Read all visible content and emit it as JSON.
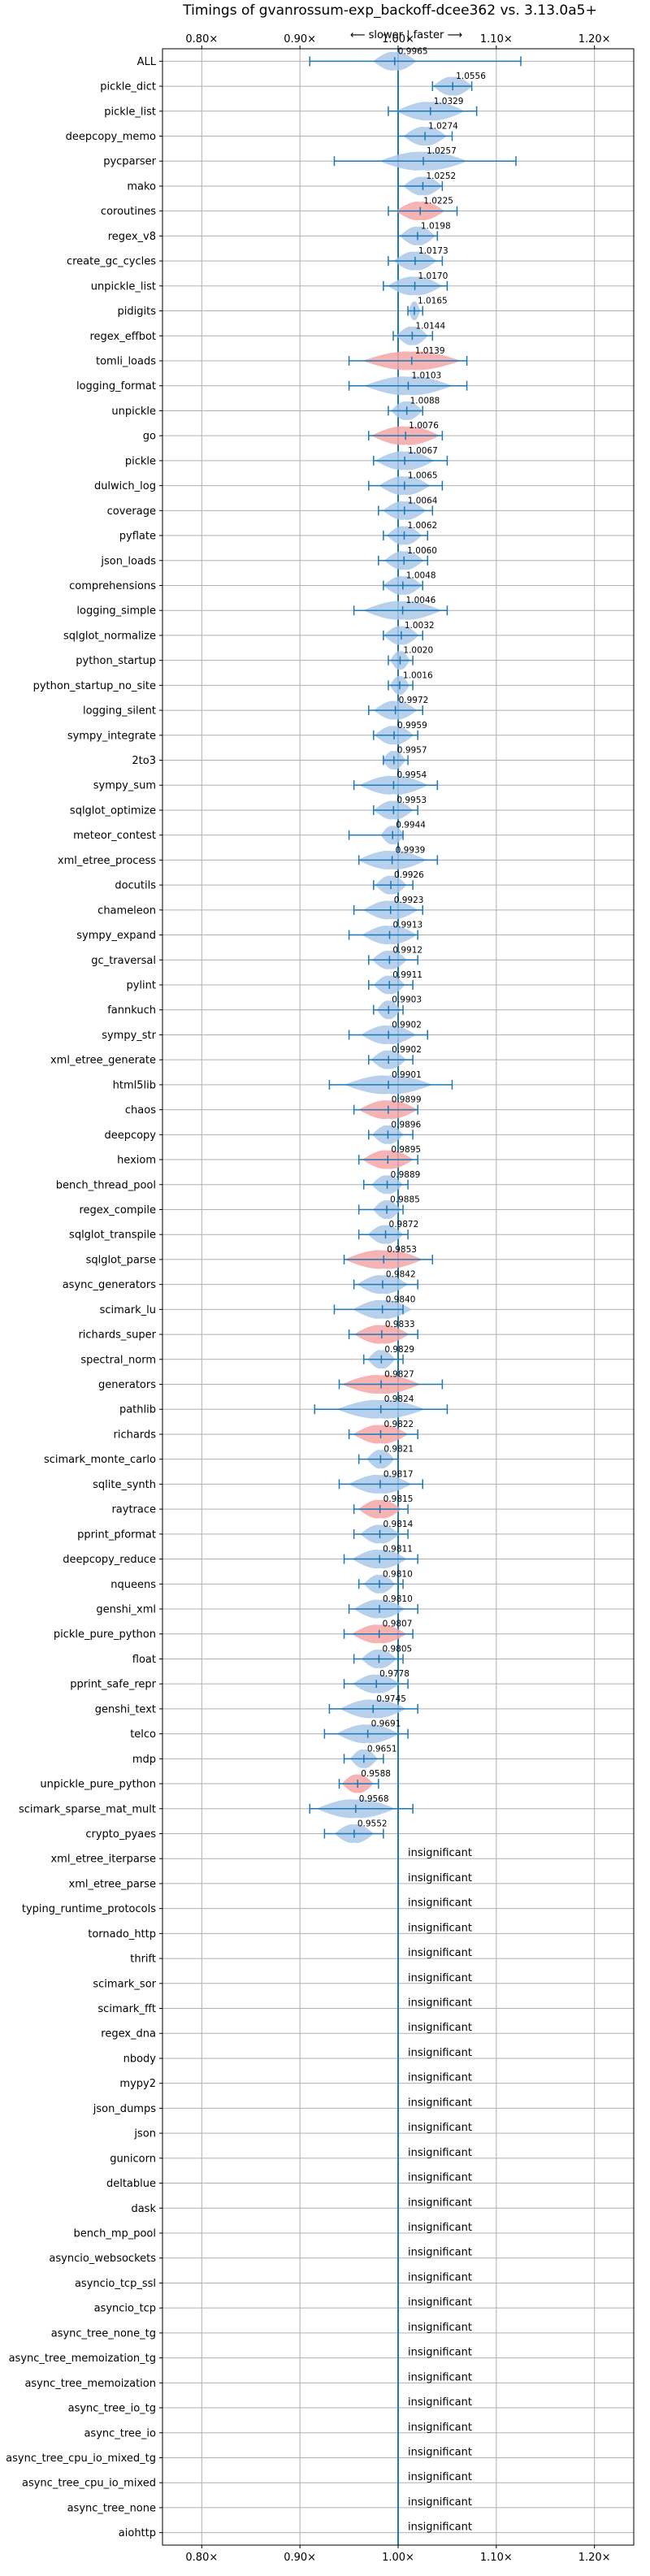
{
  "chart_data": {
    "type": "violin",
    "title": "Timings of gvanrossum-exp_backoff-dcee362 vs. 3.13.0a5+",
    "direction_note": "⟵ slower  |  faster ⟶",
    "xlim": [
      0.76,
      1.24
    ],
    "x_ticks": [
      0.8,
      0.9,
      1.0,
      1.1,
      1.2
    ],
    "x_tick_labels": [
      "0.80×",
      "0.90×",
      "1.00×",
      "1.10×",
      "1.20×"
    ],
    "reference_line": 1.0,
    "grid": true,
    "colors": {
      "faster": "#aac8e8",
      "slower": "#f4a6a6",
      "whisker": "#1f77b4",
      "reference": "#1f77b4"
    },
    "insignificant_label": "insignificant",
    "benchmarks": [
      {
        "name": "ALL",
        "value": 0.9965,
        "label": "0.9965",
        "min": 0.91,
        "max": 1.125,
        "color": "faster",
        "width": 0.022
      },
      {
        "name": "pickle_dict",
        "value": 1.0556,
        "label": "1.0556",
        "min": 1.035,
        "max": 1.075,
        "color": "faster",
        "width": 0.02
      },
      {
        "name": "pickle_list",
        "value": 1.0329,
        "label": "1.0329",
        "min": 0.99,
        "max": 1.08,
        "color": "faster",
        "width": 0.035
      },
      {
        "name": "deepcopy_memo",
        "value": 1.0274,
        "label": "1.0274",
        "min": 1.0,
        "max": 1.055,
        "color": "faster",
        "width": 0.022
      },
      {
        "name": "pycparser",
        "value": 1.0257,
        "label": "1.0257",
        "min": 0.935,
        "max": 1.12,
        "color": "faster",
        "width": 0.045
      },
      {
        "name": "mako",
        "value": 1.0252,
        "label": "1.0252",
        "min": 1.0,
        "max": 1.045,
        "color": "faster",
        "width": 0.02
      },
      {
        "name": "coroutines",
        "value": 1.0225,
        "label": "1.0225",
        "min": 0.99,
        "max": 1.06,
        "color": "slower",
        "width": 0.025
      },
      {
        "name": "regex_v8",
        "value": 1.0198,
        "label": "1.0198",
        "min": 1.0,
        "max": 1.04,
        "color": "faster",
        "width": 0.018
      },
      {
        "name": "create_gc_cycles",
        "value": 1.0173,
        "label": "1.0173",
        "min": 0.99,
        "max": 1.045,
        "color": "faster",
        "width": 0.022
      },
      {
        "name": "unpickle_list",
        "value": 1.017,
        "label": "1.0170",
        "min": 0.985,
        "max": 1.05,
        "color": "faster",
        "width": 0.028
      },
      {
        "name": "pidigits",
        "value": 1.0165,
        "label": "1.0165",
        "min": 1.01,
        "max": 1.025,
        "color": "faster",
        "width": 0.006
      },
      {
        "name": "regex_effbot",
        "value": 1.0144,
        "label": "1.0144",
        "min": 0.995,
        "max": 1.035,
        "color": "faster",
        "width": 0.016
      },
      {
        "name": "tomli_loads",
        "value": 1.0139,
        "label": "1.0139",
        "min": 0.95,
        "max": 1.07,
        "color": "slower",
        "width": 0.05
      },
      {
        "name": "logging_format",
        "value": 1.0103,
        "label": "1.0103",
        "min": 0.95,
        "max": 1.07,
        "color": "faster",
        "width": 0.045
      },
      {
        "name": "unpickle",
        "value": 1.0088,
        "label": "1.0088",
        "min": 0.99,
        "max": 1.025,
        "color": "faster",
        "width": 0.016
      },
      {
        "name": "go",
        "value": 1.0076,
        "label": "1.0076",
        "min": 0.97,
        "max": 1.045,
        "color": "slower",
        "width": 0.035
      },
      {
        "name": "pickle",
        "value": 1.0067,
        "label": "1.0067",
        "min": 0.975,
        "max": 1.05,
        "color": "faster",
        "width": 0.03
      },
      {
        "name": "dulwich_log",
        "value": 1.0065,
        "label": "1.0065",
        "min": 0.97,
        "max": 1.045,
        "color": "faster",
        "width": 0.026
      },
      {
        "name": "coverage",
        "value": 1.0064,
        "label": "1.0064",
        "min": 0.98,
        "max": 1.035,
        "color": "faster",
        "width": 0.022
      },
      {
        "name": "pyflate",
        "value": 1.0062,
        "label": "1.0062",
        "min": 0.985,
        "max": 1.03,
        "color": "faster",
        "width": 0.018
      },
      {
        "name": "json_loads",
        "value": 1.006,
        "label": "1.0060",
        "min": 0.98,
        "max": 1.03,
        "color": "faster",
        "width": 0.02
      },
      {
        "name": "comprehensions",
        "value": 1.0048,
        "label": "1.0048",
        "min": 0.985,
        "max": 1.025,
        "color": "faster",
        "width": 0.02
      },
      {
        "name": "logging_simple",
        "value": 1.0046,
        "label": "1.0046",
        "min": 0.955,
        "max": 1.05,
        "color": "faster",
        "width": 0.04
      },
      {
        "name": "sqlglot_normalize",
        "value": 1.0032,
        "label": "1.0032",
        "min": 0.985,
        "max": 1.025,
        "color": "faster",
        "width": 0.018
      },
      {
        "name": "python_startup",
        "value": 1.002,
        "label": "1.0020",
        "min": 0.99,
        "max": 1.015,
        "color": "faster",
        "width": 0.01
      },
      {
        "name": "python_startup_no_site",
        "value": 1.0016,
        "label": "1.0016",
        "min": 0.99,
        "max": 1.015,
        "color": "faster",
        "width": 0.01
      },
      {
        "name": "logging_silent",
        "value": 0.9972,
        "label": "0.9972",
        "min": 0.97,
        "max": 1.025,
        "color": "faster",
        "width": 0.022
      },
      {
        "name": "sympy_integrate",
        "value": 0.9959,
        "label": "0.9959",
        "min": 0.975,
        "max": 1.02,
        "color": "faster",
        "width": 0.02
      },
      {
        "name": "2to3",
        "value": 0.9957,
        "label": "0.9957",
        "min": 0.985,
        "max": 1.01,
        "color": "faster",
        "width": 0.012
      },
      {
        "name": "sympy_sum",
        "value": 0.9954,
        "label": "0.9954",
        "min": 0.955,
        "max": 1.04,
        "color": "faster",
        "width": 0.035
      },
      {
        "name": "sqlglot_optimize",
        "value": 0.9953,
        "label": "0.9953",
        "min": 0.975,
        "max": 1.02,
        "color": "faster",
        "width": 0.02
      },
      {
        "name": "meteor_contest",
        "value": 0.9944,
        "label": "0.9944",
        "min": 0.95,
        "max": 1.005,
        "color": "faster",
        "width": 0.012
      },
      {
        "name": "xml_etree_process",
        "value": 0.9939,
        "label": "0.9939",
        "min": 0.96,
        "max": 1.04,
        "color": "faster",
        "width": 0.035
      },
      {
        "name": "docutils",
        "value": 0.9926,
        "label": "0.9926",
        "min": 0.975,
        "max": 1.015,
        "color": "faster",
        "width": 0.016
      },
      {
        "name": "chameleon",
        "value": 0.9923,
        "label": "0.9923",
        "min": 0.955,
        "max": 1.025,
        "color": "faster",
        "width": 0.028
      },
      {
        "name": "sympy_expand",
        "value": 0.9913,
        "label": "0.9913",
        "min": 0.95,
        "max": 1.02,
        "color": "faster",
        "width": 0.028
      },
      {
        "name": "gc_traversal",
        "value": 0.9912,
        "label": "0.9912",
        "min": 0.97,
        "max": 1.02,
        "color": "faster",
        "width": 0.018
      },
      {
        "name": "pylint",
        "value": 0.9911,
        "label": "0.9911",
        "min": 0.97,
        "max": 1.015,
        "color": "faster",
        "width": 0.016
      },
      {
        "name": "fannkuch",
        "value": 0.9903,
        "label": "0.9903",
        "min": 0.975,
        "max": 1.005,
        "color": "faster",
        "width": 0.012
      },
      {
        "name": "sympy_str",
        "value": 0.9902,
        "label": "0.9902",
        "min": 0.95,
        "max": 1.03,
        "color": "faster",
        "width": 0.028
      },
      {
        "name": "xml_etree_generate",
        "value": 0.9902,
        "label": "0.9902",
        "min": 0.97,
        "max": 1.015,
        "color": "faster",
        "width": 0.018
      },
      {
        "name": "html5lib",
        "value": 0.9901,
        "label": "0.9901",
        "min": 0.93,
        "max": 1.055,
        "color": "faster",
        "width": 0.045
      },
      {
        "name": "chaos",
        "value": 0.9899,
        "label": "0.9899",
        "min": 0.955,
        "max": 1.02,
        "color": "slower",
        "width": 0.03
      },
      {
        "name": "deepcopy",
        "value": 0.9896,
        "label": "0.9896",
        "min": 0.97,
        "max": 1.015,
        "color": "faster",
        "width": 0.016
      },
      {
        "name": "hexiom",
        "value": 0.9895,
        "label": "0.9895",
        "min": 0.96,
        "max": 1.02,
        "color": "slower",
        "width": 0.026
      },
      {
        "name": "bench_thread_pool",
        "value": 0.9889,
        "label": "0.9889",
        "min": 0.965,
        "max": 1.01,
        "color": "faster",
        "width": 0.016
      },
      {
        "name": "regex_compile",
        "value": 0.9885,
        "label": "0.9885",
        "min": 0.96,
        "max": 1.005,
        "color": "faster",
        "width": 0.014
      },
      {
        "name": "sqlglot_transpile",
        "value": 0.9872,
        "label": "0.9872",
        "min": 0.96,
        "max": 1.01,
        "color": "faster",
        "width": 0.018
      },
      {
        "name": "sqlglot_parse",
        "value": 0.9853,
        "label": "0.9853",
        "min": 0.945,
        "max": 1.035,
        "color": "slower",
        "width": 0.04
      },
      {
        "name": "async_generators",
        "value": 0.9842,
        "label": "0.9842",
        "min": 0.955,
        "max": 1.02,
        "color": "faster",
        "width": 0.026
      },
      {
        "name": "scimark_lu",
        "value": 0.984,
        "label": "0.9840",
        "min": 0.935,
        "max": 1.005,
        "color": "faster",
        "width": 0.03
      },
      {
        "name": "richards_super",
        "value": 0.9833,
        "label": "0.9833",
        "min": 0.95,
        "max": 1.02,
        "color": "slower",
        "width": 0.028
      },
      {
        "name": "spectral_norm",
        "value": 0.9829,
        "label": "0.9829",
        "min": 0.965,
        "max": 1.005,
        "color": "faster",
        "width": 0.014
      },
      {
        "name": "generators",
        "value": 0.9827,
        "label": "0.9827",
        "min": 0.94,
        "max": 1.045,
        "color": "slower",
        "width": 0.04
      },
      {
        "name": "pathlib",
        "value": 0.9824,
        "label": "0.9824",
        "min": 0.915,
        "max": 1.05,
        "color": "faster",
        "width": 0.045
      },
      {
        "name": "richards",
        "value": 0.9822,
        "label": "0.9822",
        "min": 0.95,
        "max": 1.02,
        "color": "slower",
        "width": 0.028
      },
      {
        "name": "scimark_monte_carlo",
        "value": 0.9821,
        "label": "0.9821",
        "min": 0.96,
        "max": 1.0,
        "color": "faster",
        "width": 0.014
      },
      {
        "name": "sqlite_synth",
        "value": 0.9817,
        "label": "0.9817",
        "min": 0.94,
        "max": 1.025,
        "color": "faster",
        "width": 0.032
      },
      {
        "name": "raytrace",
        "value": 0.9815,
        "label": "0.9815",
        "min": 0.955,
        "max": 1.01,
        "color": "slower",
        "width": 0.022
      },
      {
        "name": "pprint_pformat",
        "value": 0.9814,
        "label": "0.9814",
        "min": 0.955,
        "max": 1.01,
        "color": "faster",
        "width": 0.02
      },
      {
        "name": "deepcopy_reduce",
        "value": 0.9811,
        "label": "0.9811",
        "min": 0.945,
        "max": 1.02,
        "color": "faster",
        "width": 0.028
      },
      {
        "name": "nqueens",
        "value": 0.981,
        "label": "0.9810",
        "min": 0.96,
        "max": 1.005,
        "color": "faster",
        "width": 0.016
      },
      {
        "name": "genshi_xml",
        "value": 0.981,
        "label": "0.9810",
        "min": 0.95,
        "max": 1.02,
        "color": "faster",
        "width": 0.026
      },
      {
        "name": "pickle_pure_python",
        "value": 0.9807,
        "label": "0.9807",
        "min": 0.945,
        "max": 1.015,
        "color": "slower",
        "width": 0.028
      },
      {
        "name": "float",
        "value": 0.9805,
        "label": "0.9805",
        "min": 0.955,
        "max": 1.005,
        "color": "faster",
        "width": 0.018
      },
      {
        "name": "pprint_safe_repr",
        "value": 0.9778,
        "label": "0.9778",
        "min": 0.945,
        "max": 1.01,
        "color": "faster",
        "width": 0.024
      },
      {
        "name": "genshi_text",
        "value": 0.9745,
        "label": "0.9745",
        "min": 0.93,
        "max": 1.02,
        "color": "faster",
        "width": 0.034
      },
      {
        "name": "telco",
        "value": 0.9691,
        "label": "0.9691",
        "min": 0.925,
        "max": 1.01,
        "color": "faster",
        "width": 0.032
      },
      {
        "name": "mdp",
        "value": 0.9651,
        "label": "0.9651",
        "min": 0.945,
        "max": 0.985,
        "color": "faster",
        "width": 0.014
      },
      {
        "name": "unpickle_pure_python",
        "value": 0.9588,
        "label": "0.9588",
        "min": 0.94,
        "max": 0.98,
        "color": "slower",
        "width": 0.016
      },
      {
        "name": "scimark_sparse_mat_mult",
        "value": 0.9568,
        "label": "0.9568",
        "min": 0.91,
        "max": 1.015,
        "color": "faster",
        "width": 0.04
      },
      {
        "name": "crypto_pyaes",
        "value": 0.9552,
        "label": "0.9552",
        "min": 0.925,
        "max": 0.985,
        "color": "faster",
        "width": 0.02
      },
      {
        "name": "xml_etree_iterparse",
        "insignificant": true
      },
      {
        "name": "xml_etree_parse",
        "insignificant": true
      },
      {
        "name": "typing_runtime_protocols",
        "insignificant": true
      },
      {
        "name": "tornado_http",
        "insignificant": true
      },
      {
        "name": "thrift",
        "insignificant": true
      },
      {
        "name": "scimark_sor",
        "insignificant": true
      },
      {
        "name": "scimark_fft",
        "insignificant": true
      },
      {
        "name": "regex_dna",
        "insignificant": true
      },
      {
        "name": "nbody",
        "insignificant": true
      },
      {
        "name": "mypy2",
        "insignificant": true
      },
      {
        "name": "json_dumps",
        "insignificant": true
      },
      {
        "name": "json",
        "insignificant": true
      },
      {
        "name": "gunicorn",
        "insignificant": true
      },
      {
        "name": "deltablue",
        "insignificant": true
      },
      {
        "name": "dask",
        "insignificant": true
      },
      {
        "name": "bench_mp_pool",
        "insignificant": true
      },
      {
        "name": "asyncio_websockets",
        "insignificant": true
      },
      {
        "name": "asyncio_tcp_ssl",
        "insignificant": true
      },
      {
        "name": "asyncio_tcp",
        "insignificant": true
      },
      {
        "name": "async_tree_none_tg",
        "insignificant": true
      },
      {
        "name": "async_tree_memoization_tg",
        "insignificant": true
      },
      {
        "name": "async_tree_memoization",
        "insignificant": true
      },
      {
        "name": "async_tree_io_tg",
        "insignificant": true
      },
      {
        "name": "async_tree_io",
        "insignificant": true
      },
      {
        "name": "async_tree_cpu_io_mixed_tg",
        "insignificant": true
      },
      {
        "name": "async_tree_cpu_io_mixed",
        "insignificant": true
      },
      {
        "name": "async_tree_none",
        "insignificant": true
      },
      {
        "name": "aiohttp",
        "insignificant": true
      }
    ]
  }
}
